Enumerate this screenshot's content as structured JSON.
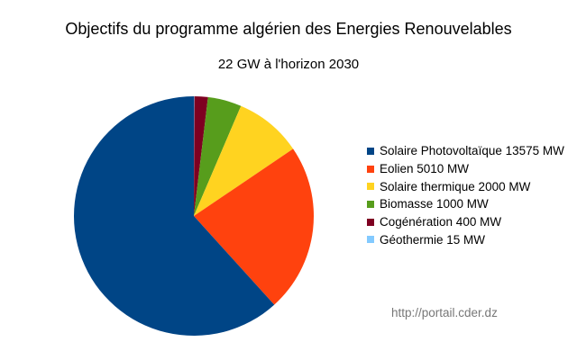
{
  "chart_data": {
    "type": "pie",
    "title": "Objectifs du programme algérien des Energies Renouvelables",
    "subtitle": "22 GW à l'horizon 2030",
    "legend_position": "right",
    "slices": [
      {
        "label": "Solaire Photovoltaïque 13575 MW",
        "value": 13575,
        "color": "#004586"
      },
      {
        "label": "Eolien 5010 MW",
        "value": 5010,
        "color": "#ff420e"
      },
      {
        "label": "Solaire thermique 2000 MW",
        "value": 2000,
        "color": "#ffd320"
      },
      {
        "label": "Biomasse 1000 MW",
        "value": 1000,
        "color": "#579d1c"
      },
      {
        "label": "Cogénération 400 MW",
        "value": 400,
        "color": "#7e0021"
      },
      {
        "label": "Géothermie 15 MW",
        "value": 15,
        "color": "#83caff"
      }
    ],
    "source": "http://portail.cder.dz"
  }
}
